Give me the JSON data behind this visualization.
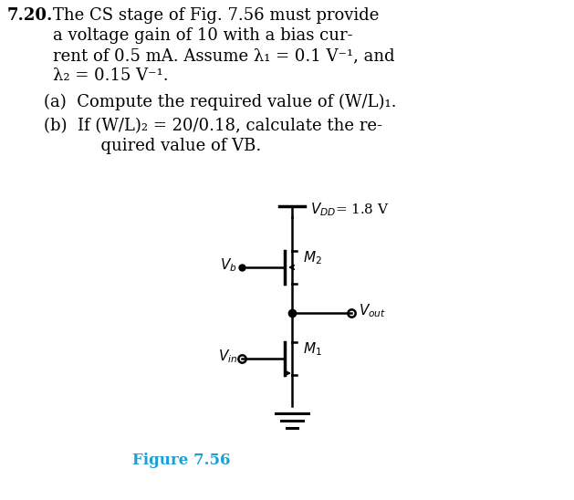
{
  "problem_number": "7.20.",
  "line1": "The CS stage of Fig. 7.56 must provide",
  "line2": "a voltage gain of 10 with a bias cur-",
  "line3": "rent of 0.5 mA. Assume λ₁ = 0.1 V⁻¹, and",
  "line4": "λ₂ = 0.15 V⁻¹.",
  "line5": "(a)  Compute the required value of (W/L)₁.",
  "line6": "(b)  If (W/L)₂ = 20/0.18, calculate the re-",
  "line7": "      quired value of VB.",
  "figure_label": "Figure 7.56",
  "figure_label_color": "#1e9fd4",
  "bg_color": "#ffffff",
  "text_color": "#000000",
  "fontsize_main": 13,
  "fontsize_circuit": 11
}
